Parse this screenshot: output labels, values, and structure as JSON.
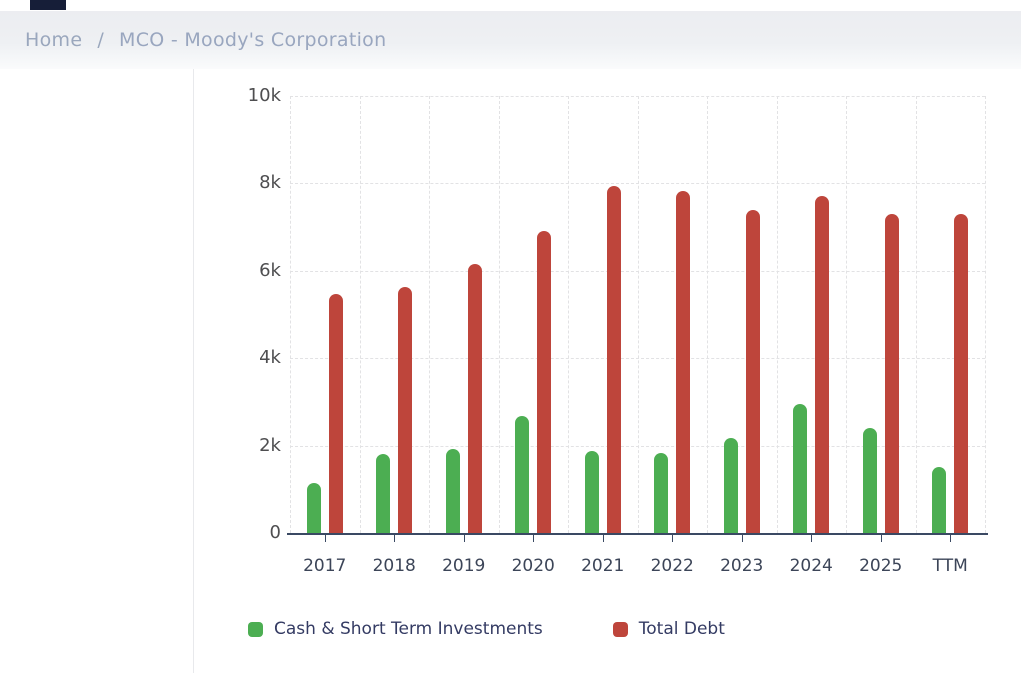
{
  "breadcrumb": {
    "home": "Home",
    "separator": "/",
    "current": "MCO - Moody's Corporation"
  },
  "chart_data": {
    "type": "bar",
    "categories": [
      "2017",
      "2018",
      "2019",
      "2020",
      "2021",
      "2022",
      "2023",
      "2024",
      "2025",
      "TTM"
    ],
    "series": [
      {
        "name": "Cash & Short Term Investments",
        "color": "#4cae52",
        "values": [
          1150,
          1800,
          1920,
          2680,
          1870,
          1830,
          2180,
          2950,
          2410,
          1500
        ]
      },
      {
        "name": "Total Debt",
        "color": "#be453b",
        "values": [
          5480,
          5620,
          6150,
          6920,
          7930,
          7820,
          7390,
          7720,
          7310,
          7290
        ]
      }
    ],
    "title": "",
    "xlabel": "",
    "ylabel": "",
    "ylim": [
      0,
      10000
    ],
    "ytick_step": 2000,
    "ytick_labels": [
      "0",
      "2k",
      "4k",
      "6k",
      "8k",
      "10k"
    ],
    "grid": "dashed",
    "legend_position": "bottom"
  },
  "colors": {
    "axis": "#3a4963",
    "grid": "#e2e2e4",
    "ytick_text": "#4e4e50",
    "xtick_text": "#3c4558",
    "legend_text": "#343b63",
    "breadcrumb_text": "#9aa7bd",
    "breadcrumb_bg": "#ecedf1",
    "top_accent": "#161e38"
  }
}
